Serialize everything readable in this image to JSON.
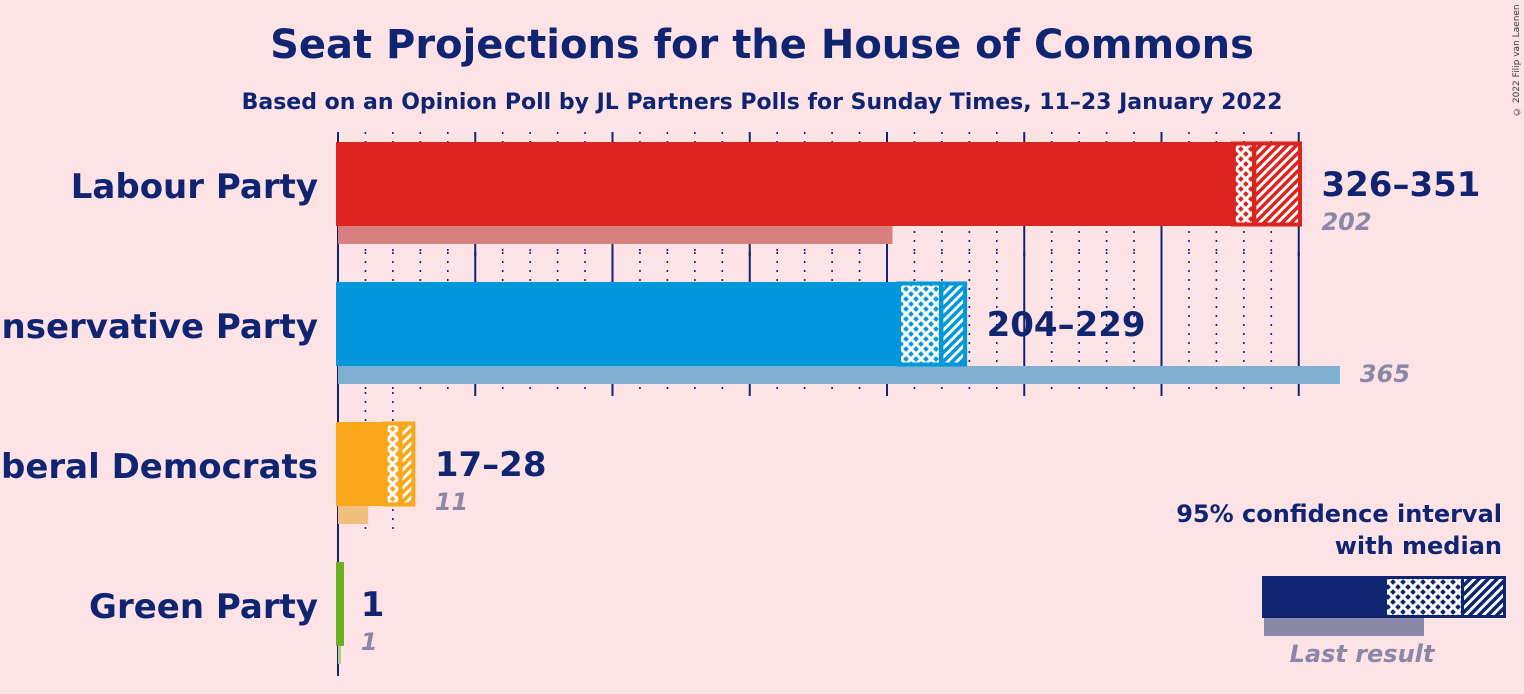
{
  "title": "Seat Projections for the House of Commons",
  "subtitle": "Based on an Opinion Poll by JL Partners Polls for Sunday Times, 11–23 January 2022",
  "copyright": "© 2022 Filip van Laenen",
  "legend": {
    "ci_line1": "95% confidence interval",
    "ci_line2": "with median",
    "last_result": "Last result"
  },
  "chart_data": {
    "type": "bar",
    "orientation": "horizontal",
    "xlim": [
      0,
      365
    ],
    "categories": [
      "Labour Party",
      "Conservative Party",
      "Liberal Democrats",
      "Green Party"
    ],
    "series": [
      {
        "name": "95% confidence interval with median",
        "values": [
          {
            "party": "Labour Party",
            "low": 326,
            "median": 334,
            "high": 351,
            "label": "326–351",
            "color": "#dc241f",
            "last_color": "#d87f7f"
          },
          {
            "party": "Conservative Party",
            "low": 204,
            "median": 220,
            "high": 229,
            "label": "204–229",
            "color": "#0098db",
            "last_color": "#7fafd1"
          },
          {
            "party": "Liberal Democrats",
            "low": 17,
            "median": 23,
            "high": 28,
            "label": "17–28",
            "color": "#faa61a",
            "last_color": "#f0bf7d"
          },
          {
            "party": "Green Party",
            "low": 1,
            "median": 1,
            "high": 1,
            "label": "1",
            "color": "#6ab023",
            "last_color": "#a8cf82"
          }
        ]
      },
      {
        "name": "Last result",
        "values": [
          202,
          365,
          11,
          1
        ]
      }
    ],
    "major_gridline_step": 50,
    "minor_gridline_step": 10,
    "grid": true,
    "legend_position": "bottom-right"
  }
}
